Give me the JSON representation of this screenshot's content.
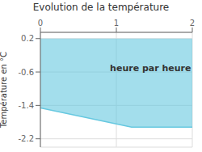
{
  "chart_data": {
    "type": "area",
    "title": "Evolution de la température",
    "ylabel": "Température en °C",
    "annotation": {
      "text": "heure par heure",
      "x": 1.45,
      "y": -0.5
    },
    "x": [
      0,
      1.2,
      2
    ],
    "values": [
      -1.46,
      -1.92,
      -1.92
    ],
    "y_top": 0.2,
    "color": "#66c8e0",
    "xlim": [
      0,
      2
    ],
    "ylim": [
      -2.4,
      0.35
    ],
    "xticks": [
      0,
      1,
      2
    ],
    "yticks": [
      0.2,
      -0.6,
      -1.4,
      -2.2
    ],
    "grid": true
  }
}
